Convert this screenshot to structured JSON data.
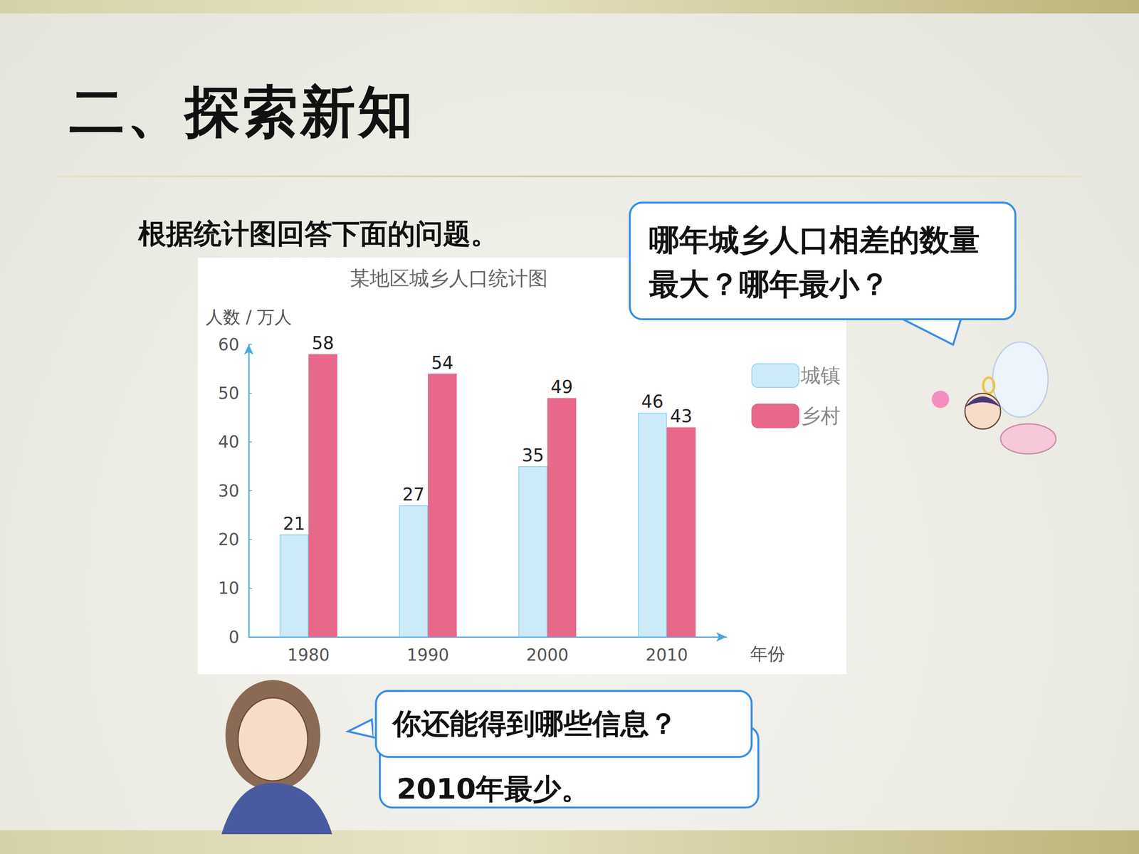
{
  "slide": {
    "heading": "二、探索新知",
    "instruction": "根据统计图回答下面的问题。",
    "bubble_question": "哪年城乡人口相差的数量最大？哪年最小？",
    "bubble_prompt": "你还能得到哪些信息？",
    "bubble_hidden_answer": "2010年最少。"
  },
  "chart_data": {
    "type": "bar",
    "title": "某地区城乡人口统计图",
    "y_label": "人数 / 万人",
    "x_label": "年份",
    "categories": [
      "1980",
      "1990",
      "2000",
      "2010"
    ],
    "series": [
      {
        "name": "城镇",
        "color": "#cdeaf8",
        "values": [
          21,
          27,
          35,
          46
        ]
      },
      {
        "name": "乡村",
        "color": "#e8688a",
        "values": [
          58,
          54,
          49,
          43
        ]
      }
    ],
    "ylim": [
      0,
      60
    ],
    "yticks": [
      0,
      10,
      20,
      30,
      40,
      50,
      60
    ],
    "data_labels": true,
    "legend": "right",
    "grid": false
  }
}
